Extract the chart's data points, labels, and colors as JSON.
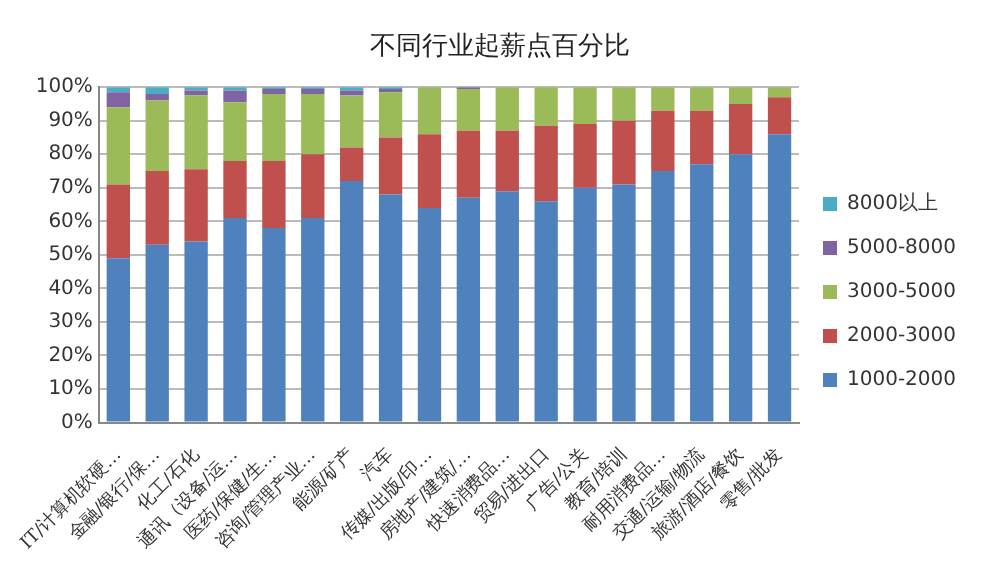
{
  "chart_data": {
    "type": "bar",
    "title": "不同行业起薪点百分比",
    "stacked": true,
    "categories": [
      "IT/计算机软硬…",
      "金融/银行/保…",
      "化工/石化",
      "通讯（设备/运…",
      "医药/保健/生…",
      "咨询/管理产业…",
      "能源/矿产",
      "汽车",
      "传媒/出版/印…",
      "房地产/建筑/…",
      "快速消费品…",
      "贸易/进出口",
      "广告/公关",
      "教育/培训",
      "耐用消费品…",
      "交通/运输/物流",
      "旅游/酒店/餐饮",
      "零售/批发"
    ],
    "series": [
      {
        "name": "1000-2000",
        "color": "#4f81bd",
        "values": [
          49,
          53,
          54,
          61,
          58,
          61,
          72,
          68,
          64,
          67,
          69,
          66,
          70,
          71,
          75,
          77,
          80,
          86
        ]
      },
      {
        "name": "2000-3000",
        "color": "#c0504d",
        "values": [
          22,
          22,
          21.5,
          17,
          20,
          19,
          10,
          17,
          22,
          20,
          18,
          22.5,
          19,
          19,
          18,
          16,
          15,
          11
        ]
      },
      {
        "name": "3000-5000",
        "color": "#9bbb59",
        "values": [
          23,
          21,
          22,
          17.5,
          20,
          18,
          15.5,
          13.5,
          14,
          12.5,
          13,
          11.5,
          11,
          10,
          7,
          7,
          5,
          3
        ]
      },
      {
        "name": "5000-8000",
        "color": "#8064a2",
        "values": [
          4.5,
          2,
          1.5,
          3.5,
          1.5,
          1.5,
          1.5,
          1,
          0,
          0.5,
          0,
          0,
          0,
          0,
          0,
          0,
          0,
          0
        ]
      },
      {
        "name": "8000以上",
        "color": "#4bacc6",
        "values": [
          1.5,
          2,
          1,
          1,
          0.5,
          0.5,
          1,
          0.5,
          0,
          0,
          0,
          0,
          0,
          0,
          0,
          0,
          0,
          0
        ]
      }
    ],
    "ylim": [
      0,
      100
    ],
    "yticks": [
      {
        "value": 0,
        "label": "0%"
      },
      {
        "value": 10,
        "label": "10%"
      },
      {
        "value": 20,
        "label": "20%"
      },
      {
        "value": 30,
        "label": "30%"
      },
      {
        "value": 40,
        "label": "40%"
      },
      {
        "value": 50,
        "label": "50%"
      },
      {
        "value": 60,
        "label": "60%"
      },
      {
        "value": 70,
        "label": "70%"
      },
      {
        "value": 80,
        "label": "80%"
      },
      {
        "value": 90,
        "label": "90%"
      },
      {
        "value": 100,
        "label": "100%"
      }
    ],
    "grid": "y",
    "legend": "right"
  }
}
